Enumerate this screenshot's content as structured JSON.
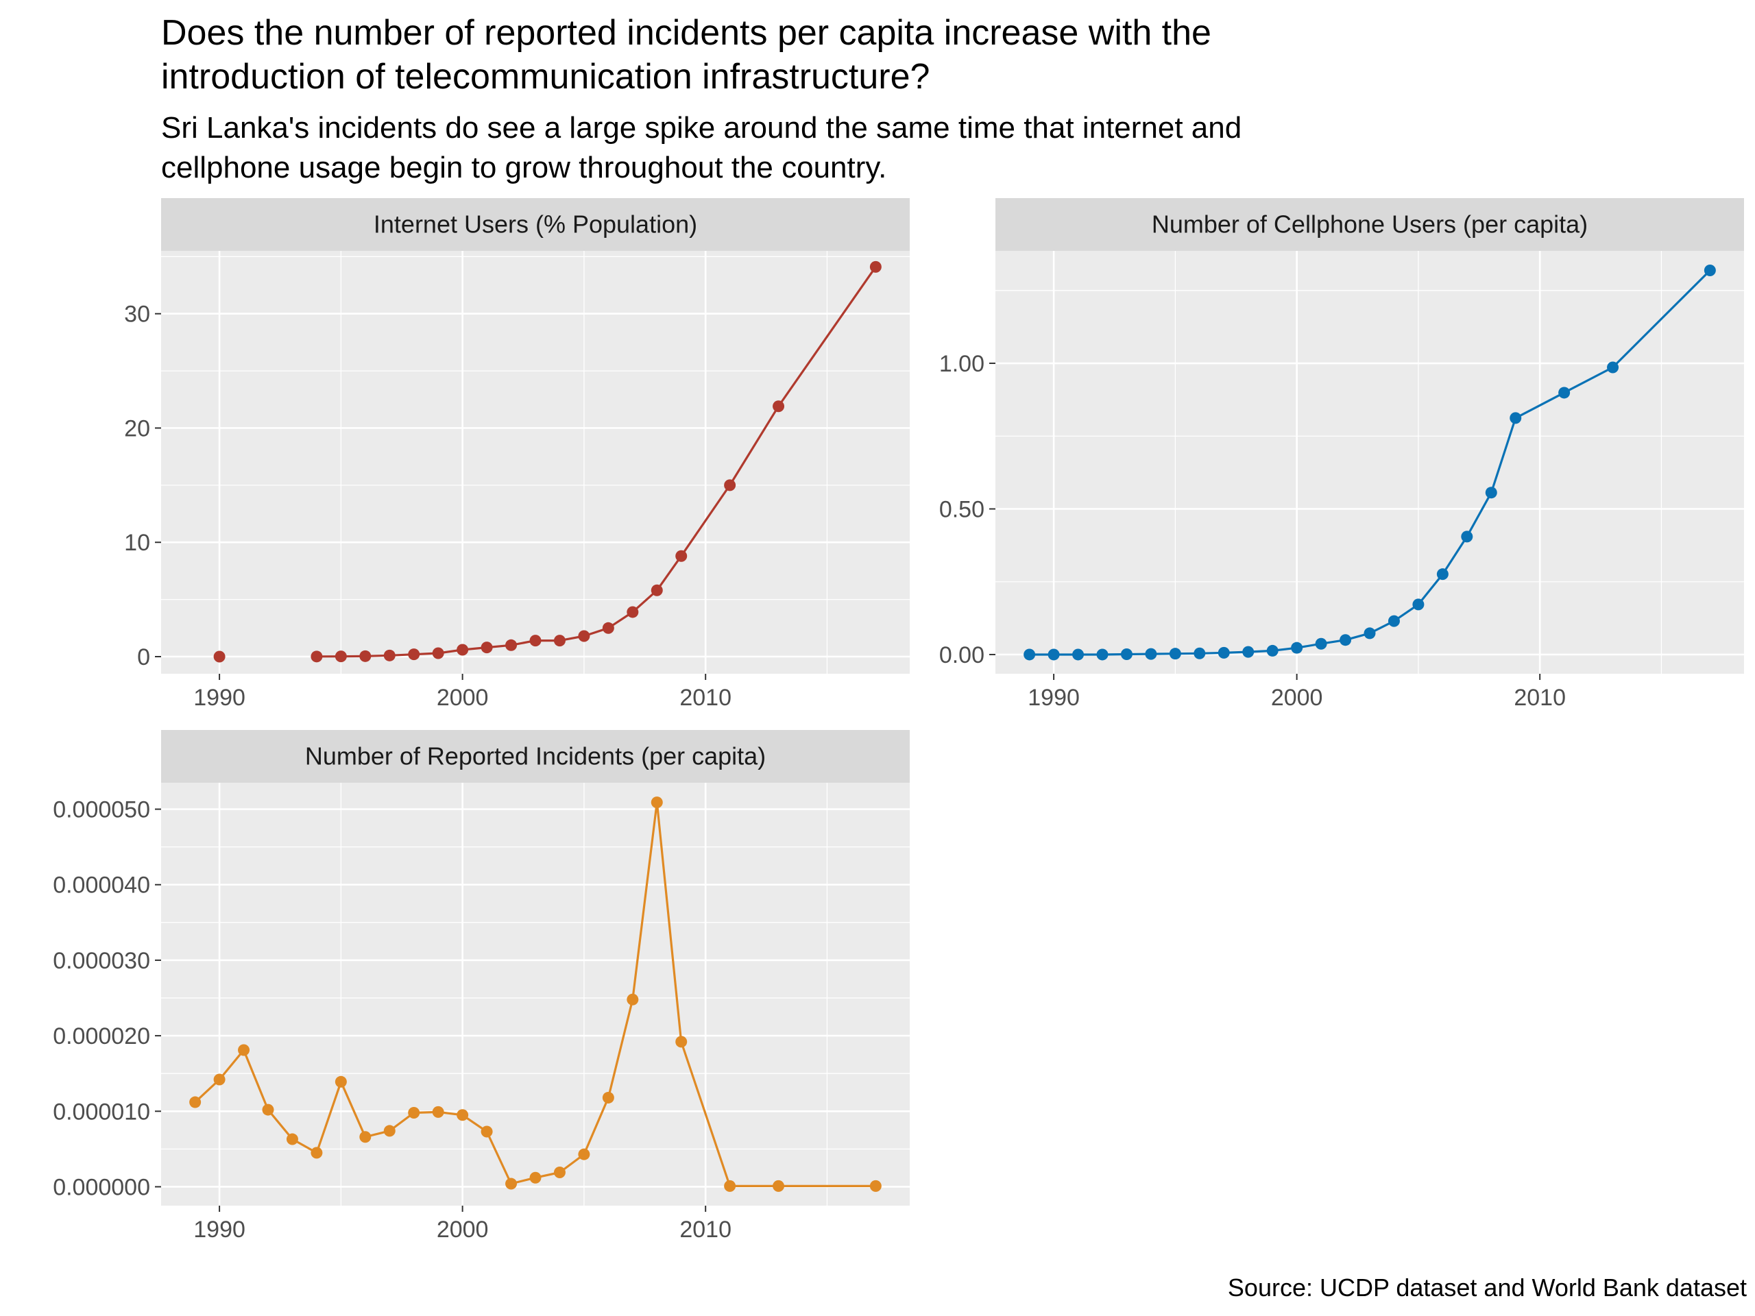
{
  "title_line1": "Does the number of reported incidents per capita increase with the",
  "title_line2": "introduction of telecommunication infrastructure?",
  "subtitle_line1": "Sri Lanka's incidents do see a large spike around the same time that internet and",
  "subtitle_line2": "cellphone usage begin to grow throughout the country.",
  "caption": "Source: UCDP dataset and World Bank dataset",
  "chart_data": [
    {
      "type": "line",
      "title": "Internet Users (% Population)",
      "color": "#B03A2E",
      "xlim": [
        1987.6,
        2018.4
      ],
      "ylim": [
        -1.5,
        35.5
      ],
      "x_ticks": [
        1990,
        2000,
        2010
      ],
      "x_tick_labels": [
        "1990",
        "2000",
        "2010"
      ],
      "y_ticks": [
        0,
        10,
        20,
        30
      ],
      "y_tick_labels": [
        "0",
        "10",
        "20",
        "30"
      ],
      "points": [
        {
          "x": 1990,
          "y": 0
        },
        {
          "x": 1994,
          "y": 0.01,
          "line": false
        },
        {
          "x": 1995,
          "y": 0.02
        },
        {
          "x": 1996,
          "y": 0.04
        },
        {
          "x": 1997,
          "y": 0.1
        },
        {
          "x": 1998,
          "y": 0.2
        },
        {
          "x": 1999,
          "y": 0.3
        },
        {
          "x": 2000,
          "y": 0.6
        },
        {
          "x": 2001,
          "y": 0.8
        },
        {
          "x": 2002,
          "y": 1.0
        },
        {
          "x": 2003,
          "y": 1.4
        },
        {
          "x": 2004,
          "y": 1.4
        },
        {
          "x": 2005,
          "y": 1.8
        },
        {
          "x": 2006,
          "y": 2.5
        },
        {
          "x": 2007,
          "y": 3.9
        },
        {
          "x": 2008,
          "y": 5.8
        },
        {
          "x": 2009,
          "y": 8.8
        },
        {
          "x": 2011,
          "y": 15.0
        },
        {
          "x": 2013,
          "y": 21.9
        },
        {
          "x": 2017,
          "y": 34.1
        }
      ]
    },
    {
      "type": "line",
      "title": "Number of Cellphone Users (per capita)",
      "color": "#0A72B5",
      "xlim": [
        1987.6,
        2018.4
      ],
      "ylim": [
        -0.066,
        1.386
      ],
      "x_ticks": [
        1990,
        2000,
        2010
      ],
      "x_tick_labels": [
        "1990",
        "2000",
        "2010"
      ],
      "y_ticks": [
        0,
        0.5,
        1.0
      ],
      "y_tick_labels": [
        "0.00",
        "0.50",
        "1.00"
      ],
      "points": [
        {
          "x": 1989,
          "y": 0.0
        },
        {
          "x": 1990,
          "y": 0.0
        },
        {
          "x": 1991,
          "y": 0.0
        },
        {
          "x": 1992,
          "y": 0.0
        },
        {
          "x": 1993,
          "y": 0.001
        },
        {
          "x": 1994,
          "y": 0.002
        },
        {
          "x": 1995,
          "y": 0.003
        },
        {
          "x": 1996,
          "y": 0.004
        },
        {
          "x": 1997,
          "y": 0.006
        },
        {
          "x": 1998,
          "y": 0.009
        },
        {
          "x": 1999,
          "y": 0.013
        },
        {
          "x": 2000,
          "y": 0.023
        },
        {
          "x": 2001,
          "y": 0.037
        },
        {
          "x": 2002,
          "y": 0.05
        },
        {
          "x": 2003,
          "y": 0.073
        },
        {
          "x": 2004,
          "y": 0.115
        },
        {
          "x": 2005,
          "y": 0.172
        },
        {
          "x": 2006,
          "y": 0.276
        },
        {
          "x": 2007,
          "y": 0.405
        },
        {
          "x": 2008,
          "y": 0.556
        },
        {
          "x": 2009,
          "y": 0.812
        },
        {
          "x": 2011,
          "y": 0.899
        },
        {
          "x": 2013,
          "y": 0.986
        },
        {
          "x": 2017,
          "y": 1.319
        }
      ]
    },
    {
      "type": "line",
      "title": "Number of Reported Incidents (per capita)",
      "color": "#E08A24",
      "xlim": [
        1987.6,
        2018.4
      ],
      "ylim": [
        -2.5e-06,
        5.35e-05
      ],
      "x_ticks": [
        1990,
        2000,
        2010
      ],
      "x_tick_labels": [
        "1990",
        "2000",
        "2010"
      ],
      "y_ticks": [
        0,
        1e-05,
        2e-05,
        3e-05,
        4e-05,
        5e-05
      ],
      "y_tick_labels": [
        "0.000000",
        "0.000010",
        "0.000020",
        "0.000030",
        "0.000040",
        "0.000050"
      ],
      "points": [
        {
          "x": 1989,
          "y": 1.12e-05
        },
        {
          "x": 1990,
          "y": 1.42e-05
        },
        {
          "x": 1991,
          "y": 1.81e-05
        },
        {
          "x": 1992,
          "y": 1.02e-05
        },
        {
          "x": 1993,
          "y": 6.3e-06
        },
        {
          "x": 1994,
          "y": 4.5e-06
        },
        {
          "x": 1995,
          "y": 1.39e-05
        },
        {
          "x": 1996,
          "y": 6.6e-06
        },
        {
          "x": 1997,
          "y": 7.4e-06
        },
        {
          "x": 1998,
          "y": 9.8e-06
        },
        {
          "x": 1999,
          "y": 9.9e-06
        },
        {
          "x": 2000,
          "y": 9.5e-06
        },
        {
          "x": 2001,
          "y": 7.3e-06
        },
        {
          "x": 2002,
          "y": 4e-07
        },
        {
          "x": 2003,
          "y": 1.2e-06
        },
        {
          "x": 2004,
          "y": 1.9e-06
        },
        {
          "x": 2005,
          "y": 4.3e-06
        },
        {
          "x": 2006,
          "y": 1.18e-05
        },
        {
          "x": 2007,
          "y": 2.48e-05
        },
        {
          "x": 2008,
          "y": 5.09e-05
        },
        {
          "x": 2009,
          "y": 1.92e-05
        },
        {
          "x": 2011,
          "y": 1e-07
        },
        {
          "x": 2013,
          "y": 1e-07
        },
        {
          "x": 2017,
          "y": 1e-07
        }
      ]
    }
  ]
}
